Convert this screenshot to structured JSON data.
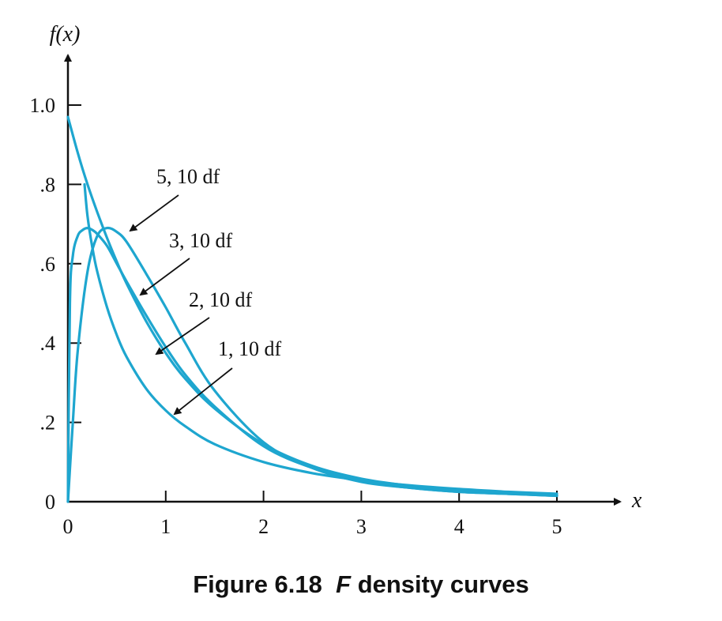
{
  "chart_data": {
    "type": "line",
    "title": "",
    "xlabel": "x",
    "ylabel": "f(x)",
    "xlim": [
      0,
      5
    ],
    "ylim": [
      0,
      1.0
    ],
    "x_ticks": [
      {
        "value": 0,
        "label": "0"
      },
      {
        "value": 1,
        "label": "1"
      },
      {
        "value": 2,
        "label": "2"
      },
      {
        "value": 3,
        "label": "3"
      },
      {
        "value": 4,
        "label": "4"
      },
      {
        "value": 5,
        "label": "5"
      }
    ],
    "y_ticks": [
      {
        "value": 0,
        "label": "0"
      },
      {
        "value": 0.2,
        "label": ".2"
      },
      {
        "value": 0.4,
        "label": ".4"
      },
      {
        "value": 0.6,
        "label": ".6"
      },
      {
        "value": 0.8,
        "label": ".8"
      },
      {
        "value": 1.0,
        "label": "1.0"
      }
    ],
    "grid": false,
    "line_color": "#1ea6cf",
    "series": [
      {
        "name": "5, 10 df",
        "x": [
          0,
          0.05,
          0.1,
          0.2,
          0.3,
          0.4,
          0.5,
          0.6,
          0.8,
          1.0,
          1.2,
          1.5,
          2.0,
          2.5,
          3.0,
          3.5,
          4.0,
          4.5,
          5.0
        ],
        "y": [
          0,
          0.2,
          0.38,
          0.58,
          0.67,
          0.69,
          0.68,
          0.655,
          0.575,
          0.49,
          0.4,
          0.28,
          0.15,
          0.085,
          0.05,
          0.035,
          0.025,
          0.02,
          0.015
        ]
      },
      {
        "name": "3, 10 df",
        "x": [
          0,
          0.02,
          0.05,
          0.1,
          0.15,
          0.2,
          0.25,
          0.3,
          0.4,
          0.5,
          0.6,
          0.8,
          1.0,
          1.2,
          1.5,
          2.0,
          2.5,
          3.0,
          3.5,
          4.0,
          4.5,
          5.0
        ],
        "y": [
          0,
          0.5,
          0.62,
          0.67,
          0.685,
          0.69,
          0.685,
          0.675,
          0.645,
          0.6,
          0.555,
          0.47,
          0.39,
          0.32,
          0.24,
          0.14,
          0.085,
          0.052,
          0.035,
          0.025,
          0.02,
          0.015
        ]
      },
      {
        "name": "2, 10 df",
        "x": [
          0,
          0.1,
          0.2,
          0.3,
          0.4,
          0.5,
          0.6,
          0.8,
          1.0,
          1.2,
          1.5,
          2.0,
          2.5,
          3.0,
          3.5,
          4.0,
          4.5,
          5.0
        ],
        "y": [
          0.97,
          0.88,
          0.8,
          0.73,
          0.665,
          0.605,
          0.55,
          0.455,
          0.375,
          0.31,
          0.235,
          0.145,
          0.09,
          0.058,
          0.04,
          0.028,
          0.021,
          0.016
        ]
      },
      {
        "name": "1, 10 df",
        "x": [
          0.17,
          0.2,
          0.25,
          0.3,
          0.4,
          0.5,
          0.6,
          0.8,
          1.0,
          1.2,
          1.5,
          2.0,
          2.5,
          3.0,
          3.5,
          4.0,
          4.5,
          5.0
        ],
        "y": [
          0.8,
          0.72,
          0.64,
          0.58,
          0.49,
          0.42,
          0.365,
          0.285,
          0.23,
          0.19,
          0.145,
          0.1,
          0.072,
          0.054,
          0.041,
          0.032,
          0.025,
          0.02
        ]
      }
    ],
    "annotations": [
      {
        "text": "5, 10 df",
        "series": 0
      },
      {
        "text": "3, 10 df",
        "series": 1
      },
      {
        "text": "2, 10 df",
        "series": 2
      },
      {
        "text": "1, 10 df",
        "series": 3
      }
    ],
    "caption": {
      "prefix": "Figure 6.18",
      "italic": "F",
      "suffix": "density curves"
    }
  }
}
